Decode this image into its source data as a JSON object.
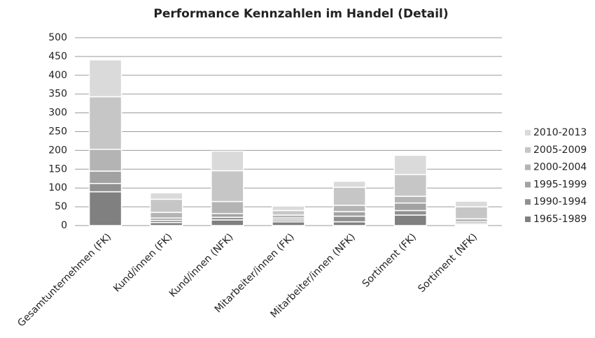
{
  "chart_data": {
    "type": "stacked_bar",
    "title": "Performance Kennzahlen im Handel (Detail)",
    "categories": [
      "Gesamtunternehmen (FK)",
      "Kund/innen (FK)",
      "Kund/innen (NFK)",
      "Mitarbeiter/innen (FK)",
      "Mitarbeiter/innen (NFK)",
      "Sortiment (FK)",
      "Sortiment (NFK)"
    ],
    "series": [
      {
        "name": "1965-1989",
        "color": "#808080",
        "values": [
          90,
          8,
          15,
          10,
          10,
          28,
          2
        ]
      },
      {
        "name": "1990-1994",
        "color": "#909090",
        "values": [
          22,
          6,
          7,
          5,
          15,
          12,
          3
        ]
      },
      {
        "name": "1995-1999",
        "color": "#a2a2a2",
        "values": [
          33,
          6,
          10,
          5,
          12,
          20,
          5
        ]
      },
      {
        "name": "2000-2004",
        "color": "#b4b4b4",
        "values": [
          58,
          15,
          32,
          8,
          17,
          18,
          8
        ]
      },
      {
        "name": "2005-2009",
        "color": "#c6c6c6",
        "values": [
          140,
          35,
          82,
          12,
          48,
          58,
          32
        ]
      },
      {
        "name": "2010-2013",
        "color": "#dadada",
        "values": [
          98,
          17,
          52,
          12,
          16,
          51,
          15
        ]
      }
    ],
    "ylim": [
      0,
      500
    ],
    "yticks": [
      0,
      50,
      100,
      150,
      200,
      250,
      300,
      350,
      400,
      450,
      500
    ],
    "grid": true,
    "legend": "right"
  }
}
